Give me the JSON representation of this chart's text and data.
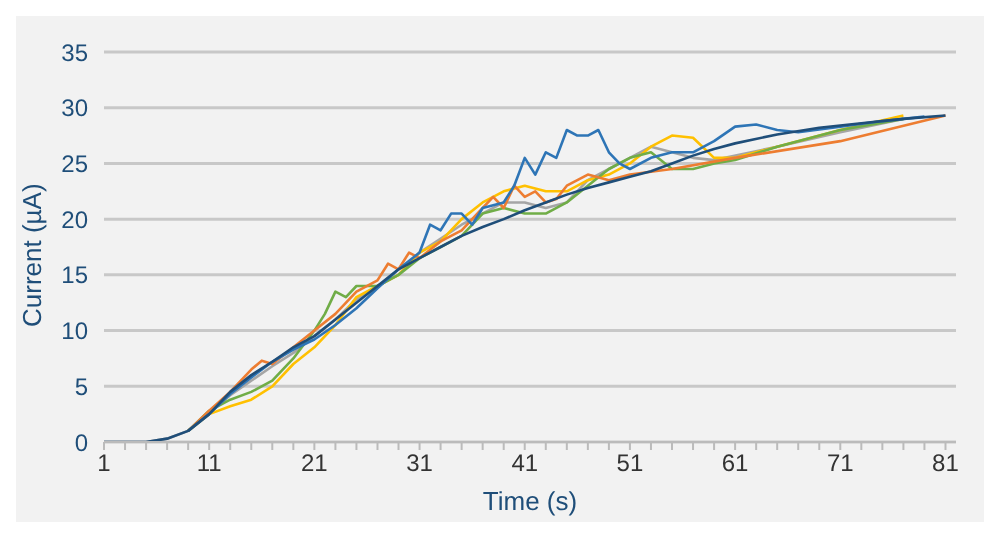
{
  "chart_data": {
    "type": "line",
    "xlabel": "Time (s)",
    "ylabel": "Current (µA)",
    "xlim": [
      1,
      82
    ],
    "ylim": [
      0,
      35
    ],
    "xticks": [
      1,
      {
        "value": 3,
        "label": null
      },
      {
        "value": 5,
        "label": null
      },
      {
        "value": 7,
        "label": null
      },
      {
        "value": 9,
        "label": null
      },
      11,
      {
        "value": 13,
        "label": null
      },
      {
        "value": 15,
        "label": null
      },
      {
        "value": 17,
        "label": null
      },
      {
        "value": 19,
        "label": null
      },
      21,
      {
        "value": 23,
        "label": null
      },
      {
        "value": 25,
        "label": null
      },
      {
        "value": 27,
        "label": null
      },
      {
        "value": 29,
        "label": null
      },
      31,
      {
        "value": 33,
        "label": null
      },
      {
        "value": 35,
        "label": null
      },
      {
        "value": 37,
        "label": null
      },
      {
        "value": 39,
        "label": null
      },
      41,
      {
        "value": 43,
        "label": null
      },
      {
        "value": 45,
        "label": null
      },
      {
        "value": 47,
        "label": null
      },
      {
        "value": 49,
        "label": null
      },
      51,
      {
        "value": 53,
        "label": null
      },
      {
        "value": 55,
        "label": null
      },
      {
        "value": 57,
        "label": null
      },
      {
        "value": 59,
        "label": null
      },
      61,
      {
        "value": 63,
        "label": null
      },
      {
        "value": 65,
        "label": null
      },
      {
        "value": 67,
        "label": null
      },
      {
        "value": 69,
        "label": null
      },
      71,
      {
        "value": 73,
        "label": null
      },
      {
        "value": 75,
        "label": null
      },
      {
        "value": 77,
        "label": null
      },
      {
        "value": 79,
        "label": null
      },
      81
    ],
    "yticks": [
      0,
      5,
      10,
      15,
      20,
      25,
      30,
      35
    ],
    "grid": "y",
    "legend": false,
    "marker": "none",
    "line_style": "solid",
    "series": [
      {
        "color": "#a5a5a5",
        "x": [
          1,
          5,
          7,
          9,
          11,
          13,
          15,
          17,
          19,
          21,
          23,
          25,
          27,
          29,
          31,
          35,
          39,
          41,
          43,
          45,
          47,
          49,
          51,
          53,
          55,
          57,
          59,
          65,
          71,
          77
        ],
        "values": [
          0,
          0,
          0.3,
          1,
          2.6,
          4.2,
          5.5,
          6.8,
          8,
          9.5,
          11,
          12.8,
          14,
          15,
          17,
          19.5,
          21.5,
          21.5,
          21,
          21.5,
          23.5,
          24.5,
          25.5,
          26.5,
          26,
          25.5,
          25.3,
          26.5,
          27.8,
          29
        ]
      },
      {
        "color": "#ffc000",
        "x": [
          9,
          11,
          13,
          15,
          17,
          19,
          21,
          23,
          25,
          27,
          29,
          31,
          33,
          35,
          37,
          39,
          41,
          43,
          45,
          47,
          49,
          51,
          53,
          55,
          57,
          59,
          61,
          65,
          71,
          77
        ],
        "values": [
          1,
          2.5,
          3.2,
          3.8,
          5,
          7,
          8.5,
          10.5,
          13,
          14,
          15,
          17,
          18,
          20,
          21.5,
          22.5,
          23,
          22.5,
          22.5,
          23.5,
          24,
          25,
          26.5,
          27.5,
          27.3,
          25.5,
          25.5,
          26.5,
          28,
          29.3
        ]
      },
      {
        "color": "#70ad47",
        "x": [
          9,
          11,
          13,
          15,
          17,
          19,
          21,
          22,
          23,
          24,
          25,
          27,
          29,
          31,
          33,
          35,
          37,
          39,
          41,
          43,
          45,
          47,
          49,
          51,
          53,
          55,
          57,
          59,
          61,
          65,
          71,
          77
        ],
        "values": [
          1,
          2.8,
          3.8,
          4.5,
          5.5,
          7.5,
          10,
          11.5,
          13.5,
          13,
          14,
          14,
          15,
          16.5,
          17.5,
          18.5,
          20.5,
          21,
          20.5,
          20.5,
          21.5,
          23,
          24.5,
          25.5,
          26,
          24.5,
          24.5,
          25,
          25.3,
          26.5,
          28,
          29
        ]
      },
      {
        "color": "#ed7d31",
        "x": [
          9,
          11,
          13,
          15,
          16,
          17,
          19,
          21,
          23,
          25,
          27,
          28,
          29,
          30,
          31,
          33,
          35,
          37,
          38,
          39,
          40,
          41,
          42,
          43,
          44,
          45,
          47,
          49,
          51,
          55,
          61,
          71,
          81
        ],
        "values": [
          1,
          2.8,
          4.5,
          6.5,
          7.3,
          7,
          8.5,
          10,
          11.5,
          13.5,
          14.5,
          16,
          15.5,
          17,
          16.5,
          18,
          19,
          21,
          22,
          21,
          23,
          22,
          22.5,
          21.5,
          21.8,
          23,
          24,
          23.5,
          24,
          24.5,
          25.5,
          27,
          29.3
        ]
      },
      {
        "color": "#2e75b6",
        "x": [
          9,
          11,
          13,
          15,
          17,
          19,
          21,
          23,
          25,
          27,
          29,
          31,
          32,
          33,
          34,
          35,
          36,
          37,
          39,
          40,
          41,
          42,
          43,
          44,
          45,
          46,
          47,
          48,
          49,
          50,
          51,
          53,
          55,
          57,
          59,
          61,
          63,
          65,
          67,
          71,
          75,
          79
        ],
        "values": [
          1,
          2.5,
          4.3,
          5.8,
          7.2,
          8.3,
          9.2,
          10.5,
          12,
          13.8,
          15.5,
          17,
          19.5,
          19,
          20.5,
          20.5,
          19.5,
          21,
          21.5,
          23,
          25.5,
          24,
          26,
          25.5,
          28,
          27.5,
          27.5,
          28,
          26,
          25,
          24.5,
          25.5,
          26,
          26,
          27,
          28.3,
          28.5,
          28,
          27.8,
          28.3,
          28.8,
          29.2
        ]
      },
      {
        "color": "#1f4e79",
        "x": [
          1,
          5,
          7,
          9,
          11,
          13,
          15,
          17,
          19,
          21,
          23,
          25,
          27,
          29,
          31,
          33,
          35,
          37,
          39,
          41,
          43,
          45,
          47,
          49,
          51,
          53,
          55,
          57,
          59,
          61,
          65,
          69,
          73,
          77,
          81
        ],
        "values": [
          0,
          0,
          0.3,
          1,
          2.5,
          4.5,
          6,
          7.2,
          8.5,
          9.5,
          11,
          12.5,
          14,
          15.5,
          16.5,
          17.5,
          18.5,
          19.3,
          20,
          20.8,
          21.5,
          22.2,
          22.8,
          23.3,
          23.8,
          24.3,
          25,
          25.7,
          26.3,
          26.8,
          27.6,
          28.2,
          28.6,
          29,
          29.3
        ]
      }
    ]
  }
}
